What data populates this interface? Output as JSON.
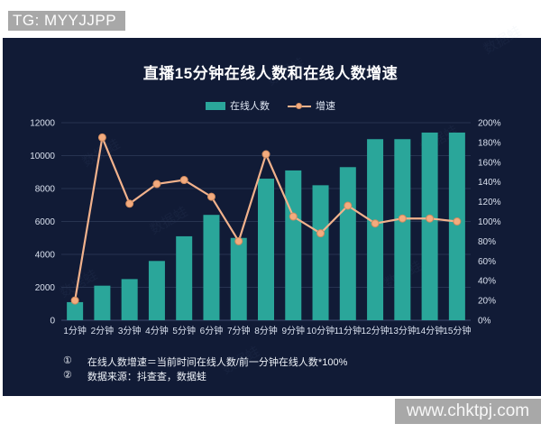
{
  "badges": {
    "tg_label": "TG: MYYJJPP",
    "site_label": "www.chktpj.com"
  },
  "watermark_text": "数据蛙",
  "chart_data": {
    "type": "bar",
    "combo": "bar+line dual axis",
    "title": "直播15分钟在线人数和在线人数增速",
    "categories": [
      "1分钟",
      "2分钟",
      "3分钟",
      "4分钟",
      "5分钟",
      "6分钟",
      "7分钟",
      "8分钟",
      "9分钟",
      "10分钟",
      "11分钟",
      "12分钟",
      "13分钟",
      "14分钟",
      "15分钟"
    ],
    "series": [
      {
        "name": "在线人数",
        "type": "bar",
        "axis": "left",
        "color": "#2aa69a",
        "values": [
          1100,
          2100,
          2500,
          3600,
          5100,
          6400,
          5000,
          8600,
          9100,
          8200,
          9300,
          11000,
          11000,
          11400,
          11400
        ]
      },
      {
        "name": "增速",
        "type": "line",
        "axis": "right",
        "color": "#f2b28c",
        "point_color": "#f3ab7e",
        "values_percent": [
          20,
          185,
          118,
          138,
          142,
          125,
          80,
          168,
          105,
          88,
          116,
          98,
          103,
          103,
          100
        ]
      }
    ],
    "left_axis": {
      "min": 0,
      "max": 12000,
      "ticks": [
        0,
        2000,
        4000,
        6000,
        8000,
        10000,
        12000
      ]
    },
    "right_axis": {
      "min": 0,
      "max": 200,
      "ticks": [
        "0%",
        "20%",
        "40%",
        "60%",
        "80%",
        "100%",
        "120%",
        "140%",
        "160%",
        "180%",
        "200%"
      ]
    },
    "legend_position": "top",
    "grid": true
  },
  "footnotes": [
    {
      "marker": "①",
      "text": "在线人数增速＝当前时间在线人数/前一分钟在线人数*100%"
    },
    {
      "marker": "②",
      "text": "数据来源：抖查查，数据蛙"
    }
  ],
  "colors": {
    "panel_bg": "#111b36",
    "bar": "#2aa69a",
    "line": "#f2b28c",
    "dot_fill": "#f3ab7e",
    "dot_stroke": "#cf8a5e",
    "grid": "#273350",
    "baseline": "#3d4a6e",
    "axis_text": "#d9e0ee",
    "badge_bg": "#a8a8a8",
    "badge_text": "#fdfdfd",
    "watermark": "#8099cc"
  }
}
